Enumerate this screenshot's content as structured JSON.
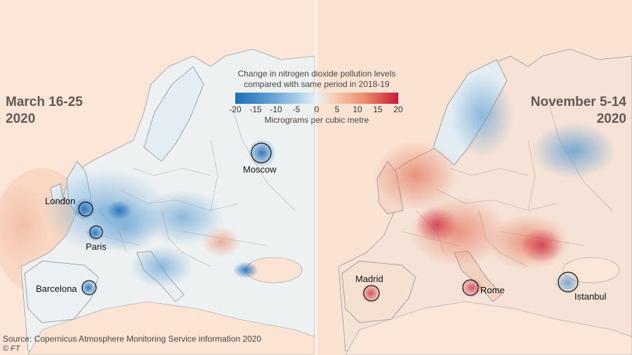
{
  "legend": {
    "title_line1": "Change in nitrogen dioxide pollution levels",
    "title_line2": "compared with same period in 2018-19",
    "ticks": [
      "-20",
      "-15",
      "-10",
      "-5",
      "0",
      "5",
      "10",
      "15",
      "20"
    ],
    "unit": "Micrograms per cubic metre",
    "color_min": "#1d6fb8",
    "color_zero": "#e9f0f4",
    "color_max": "#c81b36"
  },
  "left_map": {
    "period_line1": "March 16-25",
    "period_line2": "2020",
    "dominant_change": "decrease",
    "cities": [
      "London",
      "Paris",
      "Barcelona",
      "Moscow"
    ]
  },
  "right_map": {
    "period_line1": "November 5-14",
    "period_line2": "2020",
    "dominant_change": "increase",
    "cities": [
      "Madrid",
      "Rome",
      "Istanbul"
    ]
  },
  "footer": {
    "source": "Source: Copernicus Atmosphere Monitoring Service information 2020",
    "credit": "© FT"
  }
}
